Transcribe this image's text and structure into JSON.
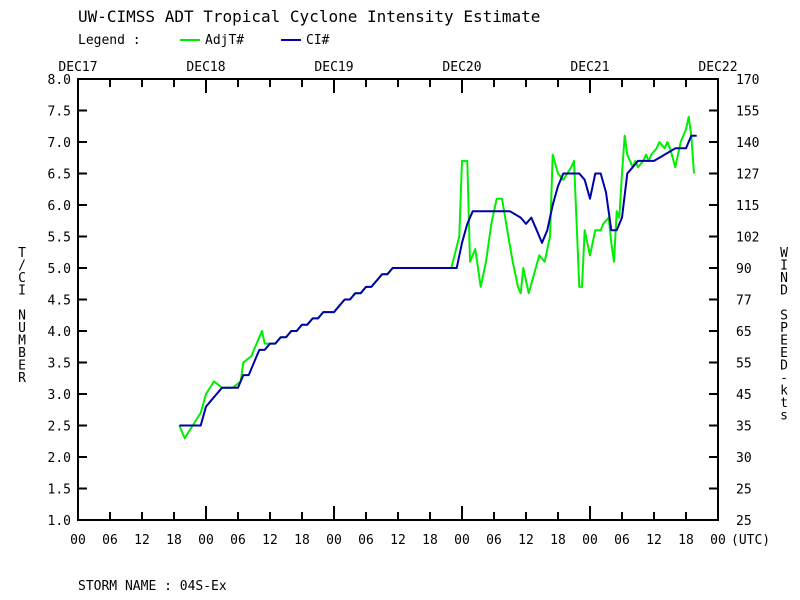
{
  "header": {
    "title": "UW-CIMSS ADT Tropical Cyclone Intensity Estimate",
    "legend_label": "Legend :"
  },
  "footer": {
    "storm_name_label": "STORM NAME : 04S-Ex"
  },
  "colors": {
    "adjt": "#00ee00",
    "ci": "#0000aa",
    "axis": "#000000"
  },
  "chart_data": {
    "type": "line",
    "title": "UW-CIMSS ADT Tropical Cyclone Intensity Estimate",
    "ylabel": "T/CI NUMBER",
    "y2label": "WIND SPEED-kts",
    "xlabel_unit": "(UTC)",
    "xlim": [
      0,
      120
    ],
    "x_unit": "hours since DEC17 00 UTC",
    "ylim": [
      1.0,
      8.0
    ],
    "yticks": [
      1.0,
      1.5,
      2.0,
      2.5,
      3.0,
      3.5,
      4.0,
      4.5,
      5.0,
      5.5,
      6.0,
      6.5,
      7.0,
      7.5,
      8.0
    ],
    "ytick_labels": [
      "1.0",
      "1.5",
      "2.0",
      "2.5",
      "3.0",
      "3.5",
      "4.0",
      "4.5",
      "5.0",
      "5.5",
      "6.0",
      "6.5",
      "7.0",
      "7.5",
      "8.0"
    ],
    "y2tick_labels": [
      "25",
      "25",
      "30",
      "35",
      "45",
      "55",
      "65",
      "77",
      "90",
      "102",
      "115",
      "127",
      "140",
      "155",
      "170"
    ],
    "xtick_labels": [
      "00",
      "06",
      "12",
      "18",
      "00",
      "06",
      "12",
      "18",
      "00",
      "06",
      "12",
      "18",
      "00",
      "06",
      "12",
      "18",
      "00",
      "06",
      "12",
      "18",
      "00"
    ],
    "date_labels": [
      {
        "x": 0,
        "label": "DEC17"
      },
      {
        "x": 24,
        "label": "DEC18"
      },
      {
        "x": 48,
        "label": "DEC19"
      },
      {
        "x": 72,
        "label": "DEC20"
      },
      {
        "x": 96,
        "label": "DEC21"
      },
      {
        "x": 120,
        "label": "DEC22"
      }
    ],
    "series": [
      {
        "name": "AdjT#",
        "color": "#00ee00",
        "points": [
          [
            19.0,
            2.5
          ],
          [
            20.0,
            2.3
          ],
          [
            21.5,
            2.5
          ],
          [
            23.0,
            2.7
          ],
          [
            24.0,
            3.0
          ],
          [
            25.5,
            3.2
          ],
          [
            27.0,
            3.1
          ],
          [
            29.0,
            3.1
          ],
          [
            30.5,
            3.2
          ],
          [
            31.0,
            3.5
          ],
          [
            32.5,
            3.6
          ],
          [
            34.0,
            3.9
          ],
          [
            34.5,
            4.0
          ],
          [
            35.0,
            3.8
          ],
          [
            36.0,
            3.8
          ],
          [
            37.0,
            3.8
          ],
          [
            38.0,
            3.9
          ],
          [
            39.0,
            3.9
          ],
          [
            40.0,
            4.0
          ],
          [
            41.0,
            4.0
          ],
          [
            42.0,
            4.1
          ],
          [
            43.0,
            4.1
          ],
          [
            44.0,
            4.2
          ],
          [
            45.0,
            4.2
          ],
          [
            46.0,
            4.3
          ],
          [
            47.0,
            4.3
          ],
          [
            48.0,
            4.3
          ],
          [
            49.0,
            4.4
          ],
          [
            50.0,
            4.5
          ],
          [
            51.0,
            4.5
          ],
          [
            52.0,
            4.6
          ],
          [
            53.0,
            4.6
          ],
          [
            54.0,
            4.7
          ],
          [
            55.0,
            4.7
          ],
          [
            56.0,
            4.8
          ],
          [
            57.0,
            4.9
          ],
          [
            58.0,
            4.9
          ],
          [
            59.0,
            5.0
          ],
          [
            60.0,
            5.0
          ],
          [
            62.0,
            5.0
          ],
          [
            64.0,
            5.0
          ],
          [
            66.0,
            5.0
          ],
          [
            68.0,
            5.0
          ],
          [
            70.0,
            5.0
          ],
          [
            71.5,
            5.5
          ],
          [
            72.0,
            6.7
          ],
          [
            73.0,
            6.7
          ],
          [
            73.5,
            5.1
          ],
          [
            74.5,
            5.3
          ],
          [
            75.5,
            4.7
          ],
          [
            76.5,
            5.1
          ],
          [
            77.5,
            5.7
          ],
          [
            78.5,
            6.1
          ],
          [
            79.5,
            6.1
          ],
          [
            80.5,
            5.6
          ],
          [
            81.5,
            5.1
          ],
          [
            82.5,
            4.7
          ],
          [
            83.0,
            4.6
          ],
          [
            83.5,
            5.0
          ],
          [
            84.5,
            4.6
          ],
          [
            85.5,
            4.9
          ],
          [
            86.5,
            5.2
          ],
          [
            87.5,
            5.1
          ],
          [
            88.5,
            5.5
          ],
          [
            89.0,
            6.8
          ],
          [
            90.0,
            6.5
          ],
          [
            91.0,
            6.4
          ],
          [
            92.5,
            6.6
          ],
          [
            93.0,
            6.7
          ],
          [
            94.0,
            4.7
          ],
          [
            94.5,
            4.7
          ],
          [
            95.0,
            5.6
          ],
          [
            96.0,
            5.2
          ],
          [
            97.0,
            5.6
          ],
          [
            98.0,
            5.6
          ],
          [
            98.5,
            5.7
          ],
          [
            99.5,
            5.8
          ],
          [
            100.0,
            5.4
          ],
          [
            100.5,
            5.1
          ],
          [
            101.0,
            5.9
          ],
          [
            101.5,
            5.8
          ],
          [
            102.0,
            6.5
          ],
          [
            102.5,
            7.1
          ],
          [
            103.0,
            6.8
          ],
          [
            104.0,
            6.6
          ],
          [
            104.5,
            6.7
          ],
          [
            105.0,
            6.6
          ],
          [
            106.0,
            6.7
          ],
          [
            106.5,
            6.8
          ],
          [
            107.0,
            6.7
          ],
          [
            107.5,
            6.8
          ],
          [
            108.5,
            6.9
          ],
          [
            109.0,
            7.0
          ],
          [
            110.0,
            6.9
          ],
          [
            110.5,
            7.0
          ],
          [
            111.0,
            6.9
          ],
          [
            112.0,
            6.6
          ],
          [
            113.0,
            7.0
          ],
          [
            114.0,
            7.2
          ],
          [
            114.5,
            7.4
          ],
          [
            115.0,
            7.1
          ],
          [
            115.5,
            6.5
          ]
        ]
      },
      {
        "name": "CI#",
        "color": "#0000aa",
        "points": [
          [
            19.0,
            2.5
          ],
          [
            23.0,
            2.5
          ],
          [
            24.0,
            2.8
          ],
          [
            25.0,
            2.9
          ],
          [
            26.0,
            3.0
          ],
          [
            27.0,
            3.1
          ],
          [
            29.0,
            3.1
          ],
          [
            30.0,
            3.1
          ],
          [
            31.0,
            3.3
          ],
          [
            32.0,
            3.3
          ],
          [
            33.0,
            3.5
          ],
          [
            34.0,
            3.7
          ],
          [
            35.0,
            3.7
          ],
          [
            36.0,
            3.8
          ],
          [
            37.0,
            3.8
          ],
          [
            38.0,
            3.9
          ],
          [
            39.0,
            3.9
          ],
          [
            40.0,
            4.0
          ],
          [
            41.0,
            4.0
          ],
          [
            42.0,
            4.1
          ],
          [
            43.0,
            4.1
          ],
          [
            44.0,
            4.2
          ],
          [
            45.0,
            4.2
          ],
          [
            46.0,
            4.3
          ],
          [
            47.0,
            4.3
          ],
          [
            48.0,
            4.3
          ],
          [
            49.0,
            4.4
          ],
          [
            50.0,
            4.5
          ],
          [
            51.0,
            4.5
          ],
          [
            52.0,
            4.6
          ],
          [
            53.0,
            4.6
          ],
          [
            54.0,
            4.7
          ],
          [
            55.0,
            4.7
          ],
          [
            56.0,
            4.8
          ],
          [
            57.0,
            4.9
          ],
          [
            58.0,
            4.9
          ],
          [
            59.0,
            5.0
          ],
          [
            60.0,
            5.0
          ],
          [
            62.0,
            5.0
          ],
          [
            64.0,
            5.0
          ],
          [
            66.0,
            5.0
          ],
          [
            68.0,
            5.0
          ],
          [
            70.0,
            5.0
          ],
          [
            71.0,
            5.0
          ],
          [
            72.0,
            5.4
          ],
          [
            73.0,
            5.7
          ],
          [
            74.0,
            5.9
          ],
          [
            75.0,
            5.9
          ],
          [
            77.0,
            5.9
          ],
          [
            79.0,
            5.9
          ],
          [
            81.0,
            5.9
          ],
          [
            83.0,
            5.8
          ],
          [
            84.0,
            5.7
          ],
          [
            85.0,
            5.8
          ],
          [
            86.0,
            5.6
          ],
          [
            87.0,
            5.4
          ],
          [
            88.0,
            5.6
          ],
          [
            89.0,
            6.0
          ],
          [
            90.0,
            6.3
          ],
          [
            91.0,
            6.5
          ],
          [
            93.0,
            6.5
          ],
          [
            94.0,
            6.5
          ],
          [
            95.0,
            6.4
          ],
          [
            96.0,
            6.1
          ],
          [
            97.0,
            6.5
          ],
          [
            98.0,
            6.5
          ],
          [
            99.0,
            6.2
          ],
          [
            100.0,
            5.6
          ],
          [
            101.0,
            5.6
          ],
          [
            102.0,
            5.8
          ],
          [
            103.0,
            6.5
          ],
          [
            104.0,
            6.6
          ],
          [
            105.0,
            6.7
          ],
          [
            106.0,
            6.7
          ],
          [
            108.0,
            6.7
          ],
          [
            110.0,
            6.8
          ],
          [
            112.0,
            6.9
          ],
          [
            114.0,
            6.9
          ],
          [
            115.0,
            7.1
          ],
          [
            116.0,
            7.1
          ]
        ]
      }
    ]
  }
}
